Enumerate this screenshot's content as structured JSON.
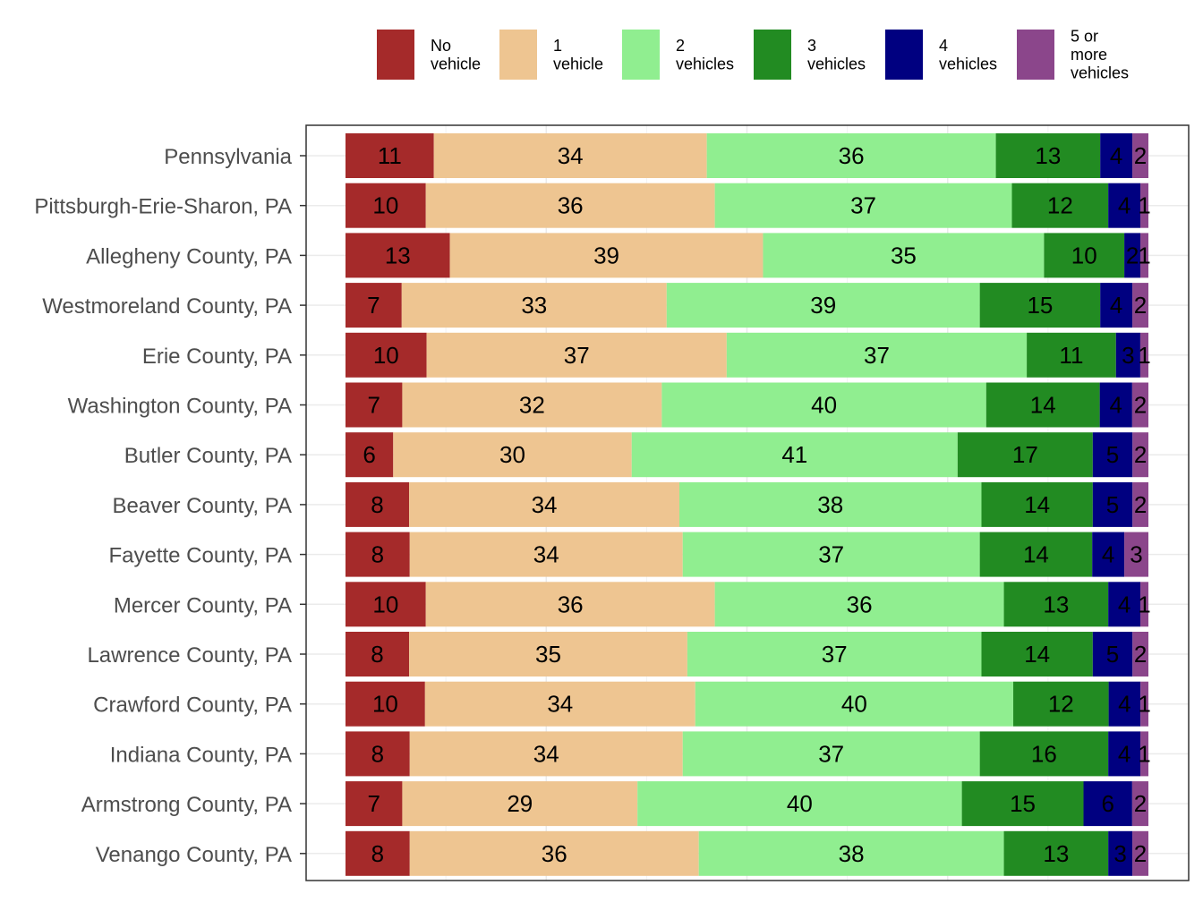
{
  "chart_data": {
    "type": "bar",
    "orientation": "horizontal",
    "stacked": true,
    "title": "",
    "xlabel": "",
    "ylabel": "",
    "xlim": [
      0,
      100
    ],
    "grid": true,
    "legend_position": "top",
    "categories": [
      "Pennsylvania",
      "Pittsburgh-Erie-Sharon, PA",
      "Allegheny County, PA",
      "Westmoreland County, PA",
      "Erie County, PA",
      "Washington County, PA",
      "Butler County, PA",
      "Beaver County, PA",
      "Fayette County, PA",
      "Mercer County, PA",
      "Lawrence County, PA",
      "Crawford County, PA",
      "Indiana County, PA",
      "Armstrong County, PA",
      "Venango County, PA"
    ],
    "series": [
      {
        "name": "No vehicle",
        "legend_lines": [
          "No",
          "vehicle"
        ],
        "color": "#a52a2a",
        "values": [
          11,
          10,
          13,
          7,
          10,
          7,
          6,
          8,
          8,
          10,
          8,
          10,
          8,
          7,
          8
        ]
      },
      {
        "name": "1 vehicle",
        "legend_lines": [
          "1",
          "vehicle"
        ],
        "color": "#eec591",
        "values": [
          34,
          36,
          39,
          33,
          37,
          32,
          30,
          34,
          34,
          36,
          35,
          34,
          34,
          29,
          36
        ]
      },
      {
        "name": "2 vehicles",
        "legend_lines": [
          "2",
          "vehicles"
        ],
        "color": "#90ee90",
        "values": [
          36,
          37,
          35,
          39,
          37,
          40,
          41,
          38,
          37,
          36,
          37,
          40,
          37,
          40,
          38
        ]
      },
      {
        "name": "3 vehicles",
        "legend_lines": [
          "3",
          "vehicles"
        ],
        "color": "#228b22",
        "values": [
          13,
          12,
          10,
          15,
          11,
          14,
          17,
          14,
          14,
          13,
          14,
          12,
          16,
          15,
          13
        ]
      },
      {
        "name": "4 vehicles",
        "legend_lines": [
          "4",
          "vehicles"
        ],
        "color": "#000080",
        "values": [
          4,
          4,
          2,
          4,
          3,
          4,
          5,
          5,
          4,
          4,
          5,
          4,
          4,
          6,
          3
        ]
      },
      {
        "name": "5 or more vehicles",
        "legend_lines": [
          "5 or",
          "more",
          "vehicles"
        ],
        "color": "#8b468b",
        "values": [
          2,
          1,
          1,
          2,
          1,
          2,
          2,
          2,
          3,
          1,
          2,
          1,
          1,
          2,
          2
        ]
      }
    ]
  }
}
